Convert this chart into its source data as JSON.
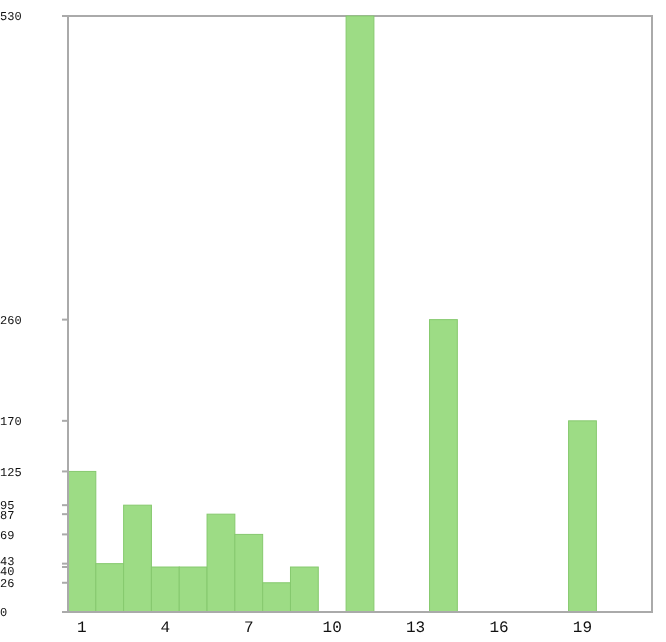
{
  "chart_data": {
    "type": "bar",
    "categories": [
      "1",
      null,
      null,
      "4",
      null,
      null,
      "7",
      null,
      null,
      "10",
      null,
      null,
      "13",
      null,
      null,
      "16",
      null,
      null,
      "19",
      null,
      null
    ],
    "values": [
      125,
      43,
      95,
      40,
      40,
      87,
      69,
      26,
      40,
      0,
      530,
      0,
      0,
      260,
      0,
      0,
      0,
      0,
      170,
      0,
      0
    ],
    "color": "#9ddc85",
    "ylim": [
      0,
      530
    ],
    "yticks": [
      0,
      26,
      40,
      43,
      69,
      87,
      95,
      125,
      170,
      260,
      530
    ],
    "grid": false
  }
}
